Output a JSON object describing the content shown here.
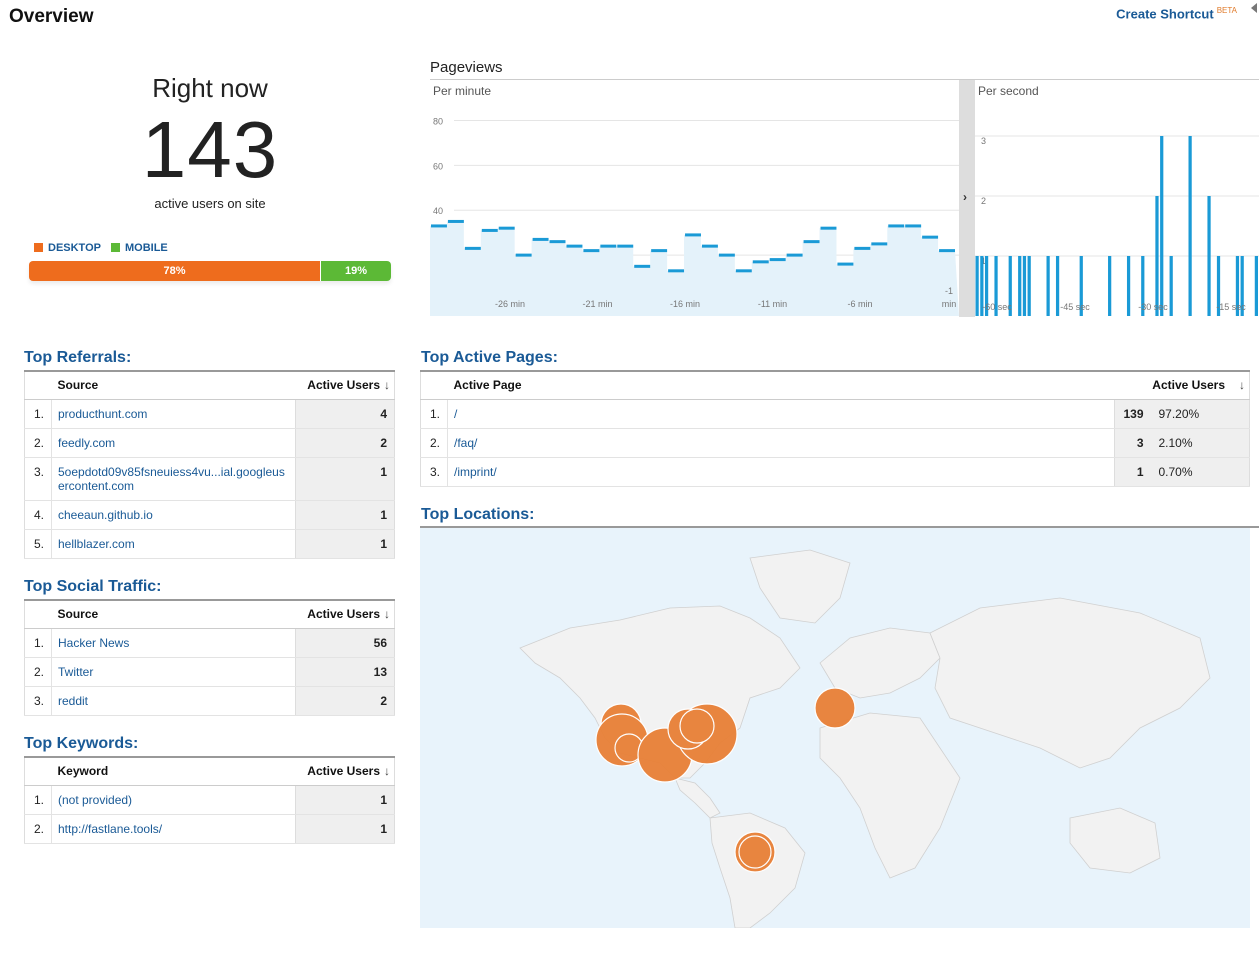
{
  "header": {
    "title": "Overview",
    "shortcut_label": "Create Shortcut",
    "shortcut_badge": "BETA"
  },
  "right_now": {
    "label": "Right now",
    "count": "143",
    "sublabel": "active users on site",
    "legend": [
      {
        "label": "DESKTOP",
        "color": "#ee6c1d"
      },
      {
        "label": "MOBILE",
        "color": "#5cb936"
      }
    ],
    "desktop_pct": 78,
    "desktop_label": "78%",
    "mobile_pct": 19,
    "mobile_label": "19%"
  },
  "pageviews": {
    "title": "Pageviews",
    "per_minute_label": "Per minute",
    "per_second_label": "Per second",
    "toggle_glyph": "›"
  },
  "chart_data": [
    {
      "type": "bar",
      "title": "Per minute",
      "ylim": [
        0,
        90
      ],
      "yticks": [
        "20",
        "40",
        "60",
        "80"
      ],
      "xticks": [
        "-26 min",
        "-21 min",
        "-16 min",
        "-11 min",
        "-6 min",
        "-1 min"
      ],
      "values": [
        33,
        35,
        23,
        31,
        32,
        20,
        27,
        26,
        24,
        22,
        24,
        24,
        15,
        22,
        13,
        29,
        24,
        20,
        13,
        17,
        18,
        20,
        26,
        32,
        16,
        23,
        25,
        33,
        33,
        28,
        22
      ],
      "color": "#1a9ad6"
    },
    {
      "type": "bar",
      "title": "Per second",
      "ylim": [
        0,
        3.6
      ],
      "yticks": [
        "1",
        "2",
        "3"
      ],
      "xticks": [
        "-60 sec",
        "-45 sec",
        "-30 sec",
        "-15 sec"
      ],
      "values": [
        1,
        1,
        1,
        0,
        1,
        0,
        0,
        1,
        0,
        1,
        1,
        1,
        0,
        0,
        0,
        1,
        0,
        1,
        0,
        0,
        0,
        0,
        1,
        0,
        0,
        0,
        0,
        0,
        1,
        0,
        0,
        0,
        1,
        0,
        0,
        1,
        0,
        0,
        2,
        3,
        0,
        1,
        0,
        0,
        0,
        3,
        0,
        0,
        0,
        2,
        0,
        1,
        0,
        0,
        0,
        1,
        1,
        0,
        0,
        1
      ],
      "color": "#1a9ad6"
    }
  ],
  "referrals": {
    "title": "Top Referrals:",
    "col_source": "Source",
    "col_users": "Active Users",
    "rows": [
      {
        "n": "1.",
        "source": "producthunt.com",
        "users": "4"
      },
      {
        "n": "2.",
        "source": "feedly.com",
        "users": "2"
      },
      {
        "n": "3.",
        "source": "5oepdotd09v85fsneuiess4vu...ial.googleusercontent.com",
        "users": "1"
      },
      {
        "n": "4.",
        "source": "cheeaun.github.io",
        "users": "1"
      },
      {
        "n": "5.",
        "source": "hellblazer.com",
        "users": "1"
      }
    ]
  },
  "social": {
    "title": "Top Social Traffic:",
    "col_source": "Source",
    "col_users": "Active Users",
    "rows": [
      {
        "n": "1.",
        "source": "Hacker News",
        "users": "56"
      },
      {
        "n": "2.",
        "source": "Twitter",
        "users": "13"
      },
      {
        "n": "3.",
        "source": "reddit",
        "users": "2"
      }
    ]
  },
  "keywords": {
    "title": "Top Keywords:",
    "col_keyword": "Keyword",
    "col_users": "Active Users",
    "rows": [
      {
        "n": "1.",
        "keyword": "(not provided)",
        "users": "1"
      },
      {
        "n": "2.",
        "keyword": "http://fastlane.tools/",
        "users": "1"
      }
    ]
  },
  "pages": {
    "title": "Top Active Pages:",
    "col_page": "Active Page",
    "col_users": "Active Users",
    "rows": [
      {
        "n": "1.",
        "page": "/",
        "users": "139",
        "pct": "97.20%"
      },
      {
        "n": "2.",
        "page": "/faq/",
        "users": "3",
        "pct": "2.10%"
      },
      {
        "n": "3.",
        "page": "/imprint/",
        "users": "1",
        "pct": "0.70%"
      }
    ]
  },
  "locations": {
    "title": "Top Locations:"
  }
}
